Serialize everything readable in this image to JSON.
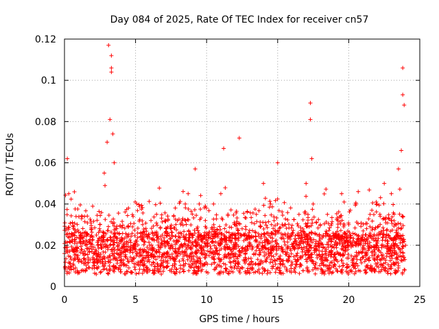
{
  "chart_data": {
    "type": "scatter",
    "title": "Day 084 of 2025, Rate Of TEC Index for receiver cn57",
    "xlabel": "GPS time / hours",
    "ylabel": "ROTI / TECUs",
    "xlim": [
      0,
      25
    ],
    "ylim": [
      0,
      0.12
    ],
    "grid": true,
    "marker": "+",
    "color": "#ff0000",
    "x_ticks": [
      0,
      5,
      10,
      15,
      20,
      25
    ],
    "x_tick_labels": [
      "0",
      "5",
      "10",
      "15",
      "20",
      "25"
    ],
    "y_ticks": [
      0,
      0.02,
      0.04,
      0.06,
      0.08,
      0.1,
      0.12
    ],
    "y_tick_labels": [
      "0",
      "0.02",
      "0.04",
      "0.06",
      "0.08",
      "0.1",
      "0.12"
    ],
    "series": [
      {
        "name": "ROTI",
        "x": [
          0.0,
          0.1,
          0.2,
          0.3,
          0.5,
          0.8,
          1.0,
          1.5,
          2.0,
          2.5,
          2.8,
          3.0,
          3.1,
          3.2,
          3.3,
          3.3,
          3.3,
          3.4,
          3.5,
          3.6,
          4.0,
          4.5,
          5.0,
          5.5,
          6.0,
          6.5,
          7.0,
          7.5,
          8.0,
          8.5,
          8.7,
          9.0,
          9.2,
          9.5,
          10.0,
          10.5,
          11.0,
          11.2,
          11.5,
          12.0,
          12.3,
          12.5,
          13.0,
          13.5,
          14.0,
          14.5,
          15.0,
          15.5,
          16.0,
          16.5,
          17.0,
          17.3,
          17.3,
          17.4,
          17.5,
          18.0,
          18.5,
          19.0,
          19.5,
          20.0,
          20.5,
          21.0,
          21.5,
          22.0,
          22.5,
          23.0,
          23.5,
          23.7,
          23.8,
          23.8,
          23.9,
          24.0
        ],
        "y": [
          0.016,
          0.028,
          0.062,
          0.045,
          0.022,
          0.018,
          0.012,
          0.02,
          0.024,
          0.03,
          0.055,
          0.07,
          0.117,
          0.081,
          0.104,
          0.112,
          0.106,
          0.074,
          0.06,
          0.028,
          0.022,
          0.038,
          0.018,
          0.03,
          0.02,
          0.025,
          0.016,
          0.028,
          0.022,
          0.04,
          0.045,
          0.025,
          0.057,
          0.02,
          0.015,
          0.03,
          0.045,
          0.067,
          0.035,
          0.03,
          0.072,
          0.028,
          0.024,
          0.035,
          0.05,
          0.04,
          0.06,
          0.03,
          0.025,
          0.035,
          0.05,
          0.089,
          0.081,
          0.062,
          0.04,
          0.03,
          0.035,
          0.025,
          0.045,
          0.03,
          0.04,
          0.025,
          0.035,
          0.04,
          0.05,
          0.045,
          0.057,
          0.066,
          0.106,
          0.093,
          0.088,
          0.02
        ]
      }
    ]
  }
}
